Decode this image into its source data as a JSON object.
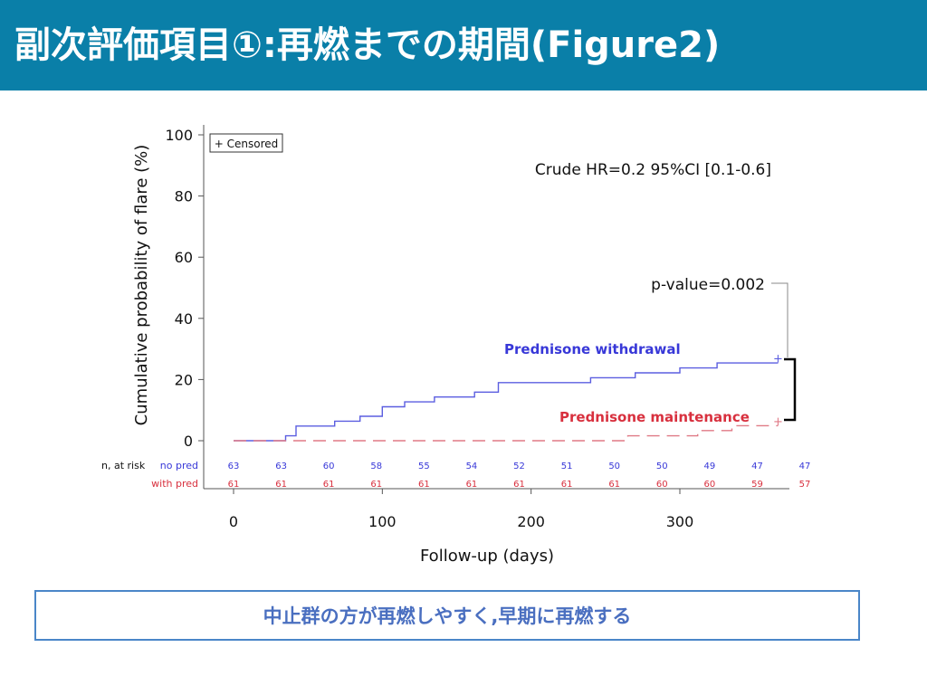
{
  "slide": {
    "title": "副次評価項目①:再燃までの期間(Figure2)",
    "conclusion": "中止群の方が再燃しやすく,早期に再燃する"
  },
  "colors": {
    "header_bg": "#0a7fa8",
    "withdrawal": "#5b5ee0",
    "maintenance": "#e07a86",
    "conclusion_text": "#4a6fc0",
    "conclusion_border": "#4a86c8"
  },
  "chart_data": {
    "type": "line",
    "xlabel": "Follow-up (days)",
    "ylabel": "Cumulative probability of flare (%)",
    "xlim": [
      0,
      375
    ],
    "ylim": [
      0,
      100
    ],
    "x_ticks": [
      0,
      100,
      200,
      300
    ],
    "y_ticks": [
      0,
      20,
      40,
      60,
      80,
      100
    ],
    "legend_box": "+ Censored",
    "annotations": {
      "hr": "Crude HR=0.2 95%CI [0.1-0.6]",
      "pvalue": "p-value=0.002"
    },
    "series": [
      {
        "name": "Prednisone withdrawal",
        "step": [
          [
            0,
            0
          ],
          [
            35,
            0
          ],
          [
            35,
            1.6
          ],
          [
            42,
            1.6
          ],
          [
            42,
            4.8
          ],
          [
            68,
            4.8
          ],
          [
            68,
            6.4
          ],
          [
            85,
            6.4
          ],
          [
            85,
            8
          ],
          [
            100,
            8
          ],
          [
            100,
            11.1
          ],
          [
            115,
            11.1
          ],
          [
            115,
            12.7
          ],
          [
            135,
            12.7
          ],
          [
            135,
            14.3
          ],
          [
            162,
            14.3
          ],
          [
            162,
            15.9
          ],
          [
            178,
            15.9
          ],
          [
            178,
            19
          ],
          [
            240,
            19
          ],
          [
            240,
            20.6
          ],
          [
            270,
            20.6
          ],
          [
            270,
            22.2
          ],
          [
            300,
            22.2
          ],
          [
            300,
            23.8
          ],
          [
            325,
            23.8
          ],
          [
            325,
            25.4
          ],
          [
            366,
            25.4
          ]
        ],
        "censored": [
          [
            366,
            27
          ]
        ]
      },
      {
        "name": "Prednisone maintenance",
        "step": [
          [
            0,
            0
          ],
          [
            265,
            0
          ],
          [
            265,
            1.6
          ],
          [
            312,
            1.6
          ],
          [
            312,
            3.3
          ],
          [
            335,
            3.3
          ],
          [
            335,
            4.9
          ],
          [
            366,
            4.9
          ]
        ],
        "censored": [
          [
            366,
            6.5
          ]
        ]
      }
    ],
    "at_risk": {
      "label": "n, at risk",
      "x": [
        0,
        32,
        64,
        96,
        128,
        160,
        192,
        224,
        256,
        288,
        320,
        352,
        384
      ],
      "rows": [
        {
          "label": "no pred",
          "values": [
            "63",
            "63",
            "60",
            "58",
            "55",
            "54",
            "52",
            "51",
            "50",
            "50",
            "49",
            "47",
            "47"
          ]
        },
        {
          "label": "with pred",
          "values": [
            "61",
            "61",
            "61",
            "61",
            "61",
            "61",
            "61",
            "61",
            "61",
            "60",
            "60",
            "59",
            "57"
          ]
        }
      ]
    }
  }
}
